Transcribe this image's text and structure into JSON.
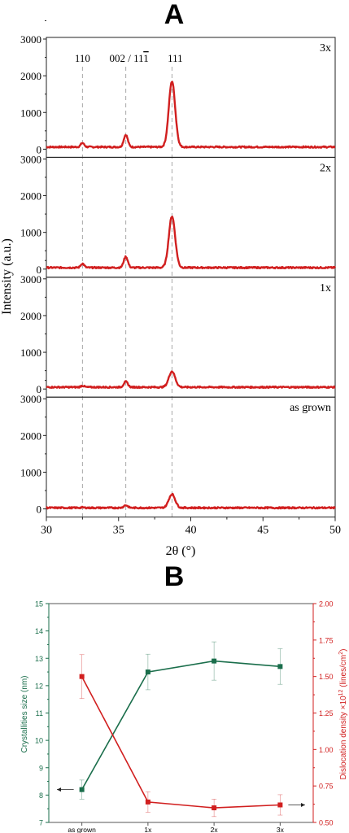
{
  "chart_data": [
    {
      "panel_label": "A",
      "type": "line",
      "xlabel": "2θ (°)",
      "ylabel": "Intensity (a.u.)",
      "xlim": [
        30,
        50
      ],
      "ylim": [
        0,
        3000
      ],
      "x_ticks": [
        "30",
        "35",
        "40",
        "45",
        "50"
      ],
      "y_ticks": [
        "0",
        "1000",
        "2000",
        "3000"
      ],
      "colors": {
        "line": "#d11f1f",
        "reference": "#a8a8a8"
      },
      "reference_lines": [
        {
          "x": 32.5,
          "label": "110"
        },
        {
          "x": 35.5,
          "label": "002 / 11"
        },
        {
          "x": 38.7,
          "label": "111"
        }
      ],
      "reference_label_extra": "1",
      "series": [
        {
          "name": "3x",
          "baseline": 60,
          "peaks": [
            {
              "x": 32.5,
              "h": 110
            },
            {
              "x": 35.5,
              "h": 330
            },
            {
              "x": 38.7,
              "h": 1790
            }
          ]
        },
        {
          "name": "2x",
          "baseline": 40,
          "peaks": [
            {
              "x": 32.5,
              "h": 110
            },
            {
              "x": 35.5,
              "h": 300
            },
            {
              "x": 38.7,
              "h": 1400
            }
          ]
        },
        {
          "name": "1x",
          "baseline": 50,
          "peaks": [
            {
              "x": 32.5,
              "h": 40
            },
            {
              "x": 35.5,
              "h": 150
            },
            {
              "x": 38.7,
              "h": 430
            }
          ]
        },
        {
          "name": "as grown",
          "baseline": 30,
          "peaks": [
            {
              "x": 32.5,
              "h": 10
            },
            {
              "x": 35.5,
              "h": 70
            },
            {
              "x": 38.7,
              "h": 370
            }
          ]
        }
      ]
    },
    {
      "panel_label": "B",
      "type": "line",
      "categories": [
        "as grown",
        "1x",
        "2x",
        "3x"
      ],
      "ylabel_left": "Crystallities size (nm)",
      "ylabel_right_base": "Dislocation density ×10",
      "ylabel_right_exp": "12",
      "ylabel_right_unit": " (lines/cm",
      "ylabel_right_unit_exp": "2",
      "ylabel_right_close": ")",
      "ylim_left": [
        7,
        15
      ],
      "ylim_right": [
        0.5,
        2.0
      ],
      "y_ticks_left": [
        "7",
        "8",
        "9",
        "10",
        "11",
        "12",
        "13",
        "14",
        "15"
      ],
      "y_ticks_right": [
        "0.50",
        "0.75",
        "1.00",
        "1.25",
        "1.50",
        "1.75",
        "2.00"
      ],
      "colors": {
        "left_axis": "#1a6e4b",
        "right_axis": "#d11f1f"
      },
      "series": [
        {
          "axis": "left",
          "values": [
            8.2,
            12.5,
            12.9,
            12.7
          ],
          "errors": [
            0.35,
            0.65,
            0.7,
            0.65
          ]
        },
        {
          "axis": "right",
          "values": [
            1.5,
            0.64,
            0.6,
            0.62
          ],
          "errors": [
            0.15,
            0.07,
            0.06,
            0.07
          ]
        }
      ]
    }
  ]
}
